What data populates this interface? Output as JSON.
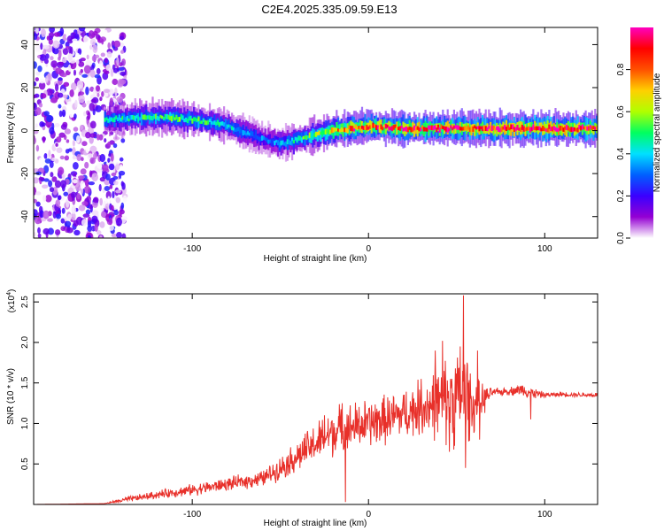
{
  "title": "C2E4.2025.335.09.59.E13",
  "chart_data": [
    {
      "type": "heatmap",
      "title": "",
      "xlabel": "Height of straight line (km)",
      "ylabel": "Frequency (Hz)",
      "xlim": [
        -190,
        130
      ],
      "ylim": [
        -50,
        48
      ],
      "xticks": [
        -100,
        0,
        100
      ],
      "yticks": [
        -40,
        -20,
        0,
        20,
        40
      ],
      "colorbar": {
        "label": "Normalized spectral amplitude",
        "range": [
          0.0,
          1.0
        ],
        "ticks": [
          0.0,
          0.2,
          0.4,
          0.6,
          0.8
        ],
        "tick_labels": [
          "0.0",
          "0.2",
          "0.4",
          "0.6",
          "0.8"
        ],
        "colors": [
          "#ffffff",
          "#9400d3",
          "#3a00ff",
          "#0060ff",
          "#00e0ff",
          "#00ff60",
          "#b0ff00",
          "#ffd000",
          "#ff5000",
          "#ff0000",
          "#ff00c0"
        ]
      },
      "signal_track": {
        "description_values": "approximate peak frequency (Hz) vs height (km)",
        "x": [
          -150,
          -130,
          -110,
          -90,
          -80,
          -70,
          -60,
          -50,
          -45,
          -40,
          -30,
          -20,
          -10,
          0,
          20,
          40,
          60,
          80,
          100,
          130
        ],
        "y": [
          5,
          6,
          6,
          4,
          2,
          -1,
          -4,
          -6,
          -5,
          -4,
          -2,
          0,
          1,
          2,
          1,
          1,
          1,
          1,
          1,
          1
        ],
        "amplitude": [
          0.4,
          0.45,
          0.5,
          0.45,
          0.4,
          0.35,
          0.3,
          0.35,
          0.4,
          0.45,
          0.55,
          0.7,
          0.8,
          0.85,
          0.9,
          0.9,
          0.9,
          0.9,
          0.95,
          0.9
        ]
      },
      "noise_region": {
        "x_range": [
          -190,
          -138
        ],
        "y_range": [
          -50,
          48
        ],
        "amplitude_range": [
          0.0,
          0.25
        ]
      }
    },
    {
      "type": "line",
      "title": "",
      "xlabel": "Height of straight line (km)",
      "ylabel": "SNR (10 * v/v)",
      "y_multiplier_label": "(x10",
      "y_multiplier_exponent": "4",
      "xlim": [
        -190,
        130
      ],
      "ylim": [
        0,
        2.6
      ],
      "xticks": [
        -100,
        0,
        100
      ],
      "yticks": [
        0.5,
        1.0,
        1.5,
        2.0,
        2.5
      ],
      "ytick_labels": [
        "0.5",
        "1.0",
        "1.5",
        "2.0",
        "2.5"
      ],
      "color": "#e8302a",
      "envelope": {
        "x": [
          -190,
          -150,
          -140,
          -120,
          -100,
          -80,
          -60,
          -50,
          -40,
          -30,
          -20,
          -10,
          0,
          10,
          20,
          30,
          40,
          45,
          50,
          55,
          60,
          70,
          80,
          88,
          92,
          100,
          110,
          130
        ],
        "mean": [
          0.0,
          0.01,
          0.05,
          0.12,
          0.18,
          0.25,
          0.32,
          0.45,
          0.6,
          0.75,
          0.9,
          0.95,
          1.0,
          1.05,
          1.12,
          1.2,
          1.25,
          1.3,
          1.32,
          1.35,
          1.2,
          1.38,
          1.4,
          1.42,
          1.38,
          1.35,
          1.36,
          1.35
        ],
        "jitter": [
          0.0,
          0.0,
          0.03,
          0.05,
          0.07,
          0.08,
          0.1,
          0.14,
          0.2,
          0.25,
          0.3,
          0.3,
          0.3,
          0.3,
          0.3,
          0.35,
          0.45,
          0.55,
          0.6,
          0.55,
          0.35,
          0.05,
          0.05,
          0.08,
          0.08,
          0.03,
          0.03,
          0.03
        ]
      },
      "peaks": [
        {
          "x": -25,
          "y": 1.1
        },
        {
          "x": -15,
          "y": 1.25
        },
        {
          "x": 30,
          "y": 1.55
        },
        {
          "x": 38,
          "y": 1.9
        },
        {
          "x": 42,
          "y": 2.02
        },
        {
          "x": 52,
          "y": 1.95
        },
        {
          "x": 54,
          "y": 2.58
        },
        {
          "x": 56,
          "y": 1.75
        },
        {
          "x": 62,
          "y": 1.9
        }
      ],
      "troughs": [
        {
          "x": -13,
          "y": 0.03
        },
        {
          "x": 46,
          "y": 0.65
        },
        {
          "x": 55,
          "y": 0.45
        },
        {
          "x": 63,
          "y": 0.8
        },
        {
          "x": 92,
          "y": 1.05
        }
      ]
    }
  ]
}
